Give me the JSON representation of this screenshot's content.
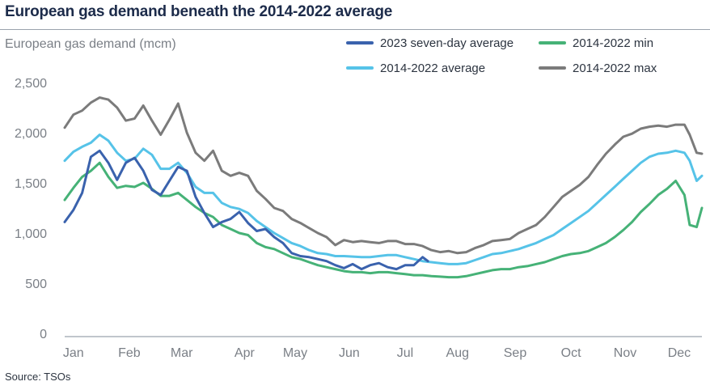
{
  "header": {
    "title": "European gas demand beneath the 2014-2022 average",
    "y_axis_label": "European gas demand (mcm)",
    "source": "Source: TSOs"
  },
  "colors": {
    "2023": "#3a62ad",
    "avg": "#56c3e8",
    "min": "#46b277",
    "max": "#7b7b7b",
    "axis": "#9aa3ad"
  },
  "chart_data": {
    "type": "line",
    "title": "European gas demand beneath the 2014-2022 average",
    "ylabel": "European gas demand (mcm)",
    "ylim": [
      0,
      2500
    ],
    "yticks": [
      "2,500",
      "2,000",
      "1,500",
      "1,000",
      "500",
      "0"
    ],
    "ytick_values": [
      2500,
      2000,
      1500,
      1000,
      500,
      0
    ],
    "xlim": [
      0,
      365
    ],
    "months": [
      "Jan",
      "Feb",
      "Mar",
      "Apr",
      "May",
      "Jun",
      "Jul",
      "Aug",
      "Sep",
      "Oct",
      "Nov",
      "Dec"
    ],
    "month_positions": [
      5,
      37,
      67,
      103,
      132,
      163,
      195,
      225,
      258,
      290,
      321,
      352
    ],
    "grid": false,
    "legend_position": "top-right",
    "series": [
      {
        "key": "max",
        "name": "2014-2022 max",
        "day": [
          0,
          5,
          10,
          15,
          20,
          25,
          30,
          35,
          40,
          45,
          50,
          55,
          60,
          65,
          70,
          75,
          80,
          85,
          90,
          95,
          100,
          105,
          110,
          115,
          120,
          125,
          130,
          135,
          140,
          145,
          150,
          155,
          160,
          165,
          170,
          175,
          180,
          185,
          190,
          195,
          200,
          205,
          210,
          215,
          220,
          225,
          230,
          235,
          240,
          245,
          250,
          255,
          260,
          265,
          270,
          275,
          280,
          285,
          290,
          295,
          300,
          305,
          310,
          315,
          320,
          325,
          330,
          335,
          340,
          345,
          350,
          355,
          358,
          362,
          365
        ],
        "values": [
          2050,
          2180,
          2220,
          2300,
          2350,
          2330,
          2250,
          2120,
          2140,
          2270,
          2120,
          1980,
          2130,
          2290,
          2000,
          1800,
          1720,
          1820,
          1620,
          1570,
          1600,
          1570,
          1420,
          1340,
          1250,
          1220,
          1140,
          1100,
          1050,
          1000,
          960,
          880,
          930,
          910,
          920,
          910,
          900,
          920,
          920,
          890,
          890,
          870,
          830,
          810,
          820,
          800,
          810,
          850,
          880,
          920,
          930,
          940,
          1000,
          1040,
          1080,
          1160,
          1260,
          1360,
          1420,
          1480,
          1560,
          1680,
          1790,
          1880,
          1960,
          1990,
          2040,
          2060,
          2070,
          2060,
          2080,
          2080,
          1980,
          1800,
          1790
        ]
      },
      {
        "key": "avg",
        "name": "2014-2022 average",
        "day": [
          0,
          5,
          10,
          15,
          20,
          25,
          30,
          35,
          40,
          45,
          50,
          55,
          60,
          65,
          70,
          75,
          80,
          85,
          90,
          95,
          100,
          105,
          110,
          115,
          120,
          125,
          130,
          135,
          140,
          145,
          150,
          155,
          160,
          165,
          170,
          175,
          180,
          185,
          190,
          195,
          200,
          205,
          210,
          215,
          220,
          225,
          230,
          235,
          240,
          245,
          250,
          255,
          260,
          265,
          270,
          275,
          280,
          285,
          290,
          295,
          300,
          305,
          310,
          315,
          320,
          325,
          330,
          335,
          340,
          345,
          350,
          355,
          358,
          362,
          365
        ],
        "values": [
          1720,
          1810,
          1860,
          1900,
          1980,
          1920,
          1800,
          1720,
          1740,
          1840,
          1780,
          1640,
          1640,
          1700,
          1600,
          1460,
          1400,
          1400,
          1300,
          1260,
          1240,
          1200,
          1120,
          1060,
          1000,
          950,
          900,
          870,
          830,
          800,
          790,
          770,
          770,
          765,
          760,
          760,
          770,
          780,
          780,
          760,
          740,
          720,
          710,
          700,
          690,
          690,
          700,
          730,
          760,
          790,
          800,
          820,
          840,
          870,
          900,
          940,
          980,
          1040,
          1100,
          1160,
          1220,
          1300,
          1380,
          1460,
          1540,
          1620,
          1700,
          1760,
          1790,
          1800,
          1820,
          1800,
          1720,
          1520,
          1570
        ]
      },
      {
        "key": "min",
        "name": "2014-2022 min",
        "day": [
          0,
          5,
          10,
          15,
          20,
          25,
          30,
          35,
          40,
          45,
          50,
          55,
          60,
          65,
          70,
          75,
          80,
          85,
          90,
          95,
          100,
          105,
          110,
          115,
          120,
          125,
          130,
          135,
          140,
          145,
          150,
          155,
          160,
          165,
          170,
          175,
          180,
          185,
          190,
          195,
          200,
          205,
          210,
          215,
          220,
          225,
          230,
          235,
          240,
          245,
          250,
          255,
          260,
          265,
          270,
          275,
          280,
          285,
          290,
          295,
          300,
          305,
          310,
          315,
          320,
          325,
          330,
          335,
          340,
          345,
          350,
          355,
          358,
          362,
          365
        ],
        "values": [
          1330,
          1450,
          1560,
          1620,
          1700,
          1560,
          1450,
          1470,
          1460,
          1500,
          1440,
          1370,
          1370,
          1400,
          1330,
          1260,
          1200,
          1160,
          1080,
          1040,
          1000,
          980,
          900,
          860,
          840,
          800,
          760,
          740,
          710,
          680,
          660,
          640,
          620,
          610,
          610,
          600,
          610,
          610,
          600,
          590,
          580,
          580,
          570,
          565,
          560,
          560,
          570,
          590,
          610,
          630,
          640,
          640,
          660,
          670,
          690,
          710,
          740,
          770,
          790,
          800,
          820,
          860,
          900,
          960,
          1030,
          1110,
          1210,
          1290,
          1380,
          1440,
          1520,
          1380,
          1080,
          1060,
          1250
        ]
      },
      {
        "key": "2023",
        "name": "2023 seven-day average",
        "day": [
          0,
          5,
          10,
          15,
          20,
          25,
          30,
          35,
          40,
          45,
          50,
          55,
          60,
          65,
          70,
          75,
          80,
          85,
          90,
          95,
          100,
          105,
          110,
          115,
          120,
          125,
          130,
          135,
          140,
          145,
          150,
          155,
          160,
          165,
          170,
          175,
          180,
          185,
          190,
          195,
          200,
          205,
          208
        ],
        "values": [
          1110,
          1230,
          1400,
          1760,
          1820,
          1700,
          1530,
          1700,
          1750,
          1620,
          1430,
          1380,
          1520,
          1660,
          1620,
          1360,
          1200,
          1060,
          1110,
          1140,
          1210,
          1100,
          1020,
          1040,
          960,
          900,
          800,
          770,
          760,
          740,
          720,
          680,
          650,
          690,
          640,
          680,
          700,
          660,
          640,
          680,
          680,
          760,
          720
        ]
      }
    ]
  }
}
